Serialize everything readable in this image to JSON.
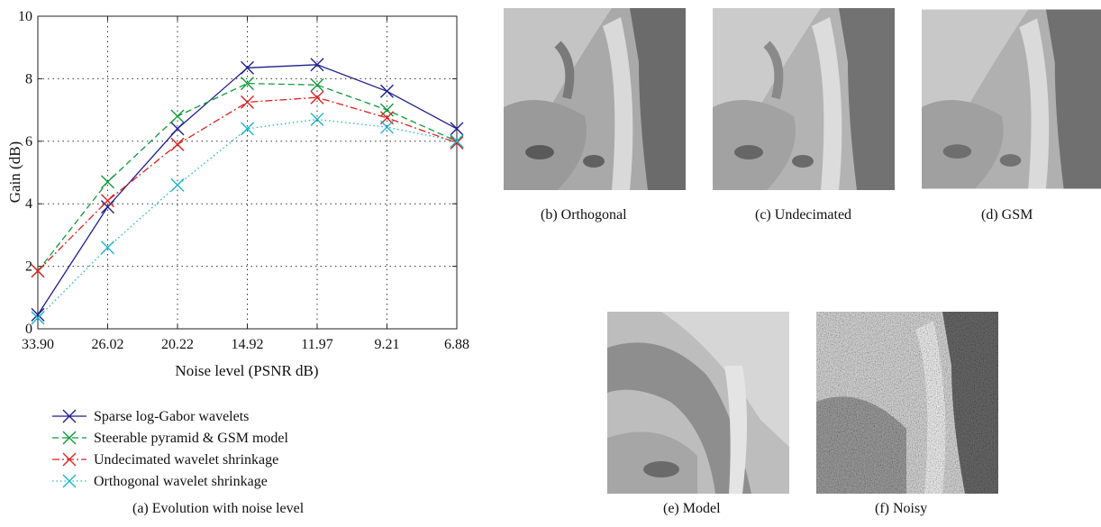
{
  "chart_data": {
    "type": "line",
    "xlabel": "Noise level (PSNR dB)",
    "ylabel": "Gain (dB)",
    "categories": [
      "33.90",
      "26.02",
      "20.22",
      "14.92",
      "11.97",
      "9.21",
      "6.88"
    ],
    "ylim": [
      0,
      10
    ],
    "yticks": [
      "0",
      "2",
      "4",
      "6",
      "8",
      "10"
    ],
    "grid": true,
    "legend_position": "below",
    "series": [
      {
        "name": "Sparse log-Gabor wavelets",
        "color": "#1f1f8f",
        "dash": "solid",
        "values": [
          0.45,
          3.9,
          6.4,
          8.35,
          8.45,
          7.6,
          6.4
        ]
      },
      {
        "name": "Steerable pyramid & GSM model",
        "color": "#0f9a3a",
        "dash": "dashed",
        "values": [
          1.85,
          4.7,
          6.8,
          7.85,
          7.8,
          7.0,
          6.0
        ]
      },
      {
        "name": "Undecimated wavelet shrinkage",
        "color": "#e02020",
        "dash": "dashdot",
        "values": [
          1.85,
          4.1,
          5.9,
          7.25,
          7.4,
          6.75,
          5.95
        ]
      },
      {
        "name": "Orthogonal wavelet shrinkage",
        "color": "#19b6c8",
        "dash": "dotted",
        "values": [
          0.35,
          2.6,
          4.6,
          6.4,
          6.7,
          6.45,
          6.0
        ]
      }
    ]
  },
  "captions": {
    "a": "(a) Evolution with noise level",
    "b": "(b) Orthogonal",
    "c": "(c) Undecimated",
    "d": "(d) GSM",
    "e": "(e) Model",
    "f": "(f) Noisy"
  }
}
